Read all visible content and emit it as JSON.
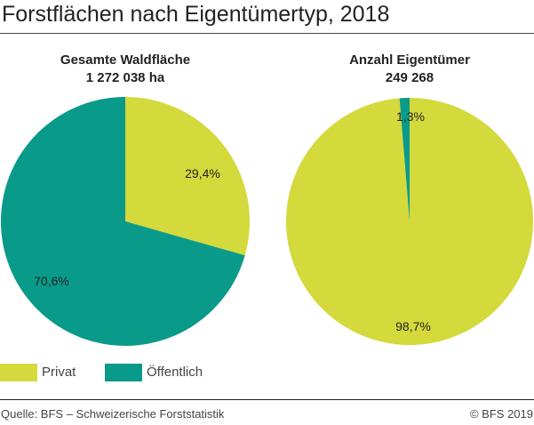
{
  "title": "Forstflächen nach Eigentümertyp, 2018",
  "colors": {
    "Privat": "#d4d93c",
    "Öffentlich": "#0a9a8a"
  },
  "chart_data": [
    {
      "type": "pie",
      "title": "Gesamte Waldfläche",
      "subtitle": "1 272 038 ha",
      "categories": [
        "Privat",
        "Öffentlich"
      ],
      "values": [
        29.4,
        70.6
      ],
      "labels": [
        "29,4%",
        "70,6%"
      ],
      "start": "12 o'clock, clockwise"
    },
    {
      "type": "pie",
      "title": "Anzahl Eigentümer",
      "subtitle": "249 268",
      "categories": [
        "Privat",
        "Öffentlich"
      ],
      "values": [
        98.7,
        1.3
      ],
      "labels": [
        "98,7%",
        "1,3%"
      ],
      "start": "12 o'clock, clockwise"
    }
  ],
  "legend": {
    "placement": "bottom-left",
    "items": [
      "Privat",
      "Öffentlich"
    ]
  },
  "footer": {
    "source": "Quelle: BFS – Schweizerische Forststatistik",
    "copyright": "© BFS 2019"
  }
}
